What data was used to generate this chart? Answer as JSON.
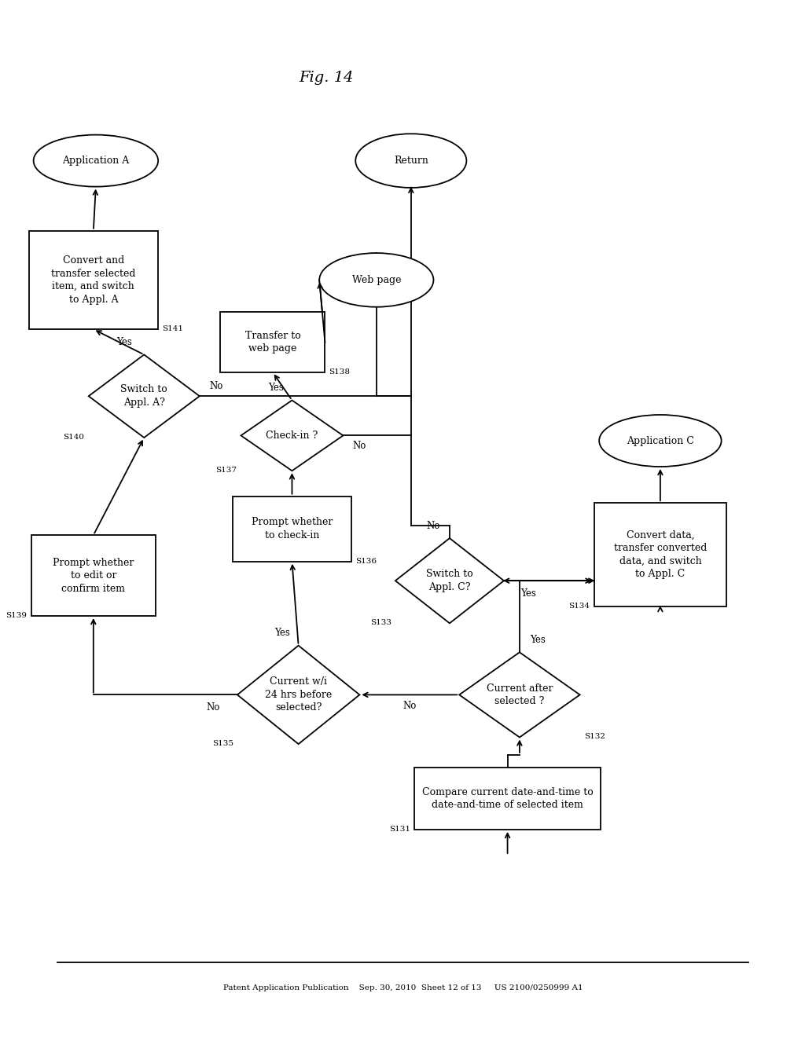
{
  "bg": "#ffffff",
  "header": "Patent Application Publication    Sep. 30, 2010  Sheet 12 of 13     US 2100/0250999 A1",
  "fig_label": "Fig. 14",
  "lw": 1.3,
  "fs": 9.0,
  "nodes": {
    "S131": {
      "label": "Compare current date-and-time to\ndate-and-time of selected item"
    },
    "S132": {
      "label": "Current after\nselected ?"
    },
    "S135": {
      "label": "Current w/i\n24 hrs before\nselected?"
    },
    "S139": {
      "label": "Prompt whether\nto edit or\nconfirm item"
    },
    "S136": {
      "label": "Prompt whether\nto check-in"
    },
    "S133": {
      "label": "Switch to\nAppl. C?"
    },
    "S134": {
      "label": "Convert data,\ntransfer converted\ndata, and switch\nto Appl. C"
    },
    "S137": {
      "label": "Check-in ?"
    },
    "AppC": {
      "label": "Application C"
    },
    "S138": {
      "label": "Transfer to\nweb page"
    },
    "WebPage": {
      "label": "Web page"
    },
    "S140": {
      "label": "Switch to\nAppl. A?"
    },
    "S141": {
      "label": "Convert and\ntransfer selected\nitem, and switch\nto Appl. A"
    },
    "AppA": {
      "label": "Application A"
    },
    "Return": {
      "label": "Return"
    }
  }
}
